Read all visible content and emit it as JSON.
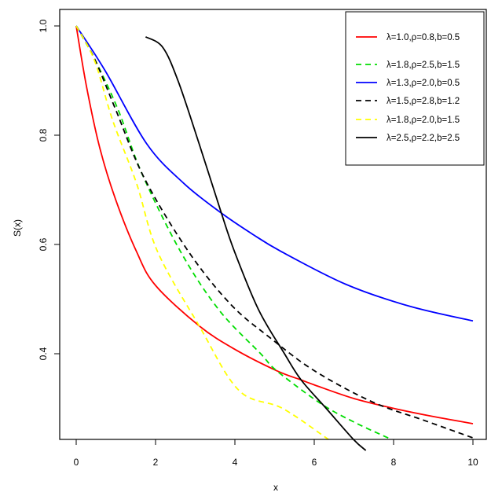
{
  "chart_data": {
    "type": "line",
    "title": "",
    "xlabel": "x",
    "ylabel": "S(x)",
    "xlim": [
      0,
      10
    ],
    "ylim": [
      0.243,
      1.03
    ],
    "xticks": [
      0,
      2,
      4,
      6,
      8,
      10
    ],
    "xtick_labels": [
      "0",
      "2",
      "4",
      "6",
      "8",
      "10"
    ],
    "yticks": [
      0.4,
      0.6,
      0.8,
      1.0
    ],
    "ytick_labels": [
      "0.4",
      "0.6",
      "0.8",
      "1.0"
    ],
    "grid": false,
    "legend_position": "top-right",
    "series": [
      {
        "name": "λ=1.0,ρ=0.8,b=0.5",
        "color": "#ff0000",
        "dash": "solid",
        "x": [
          0,
          0.26,
          0.59,
          0.99,
          1.52,
          2.0,
          3.1,
          4.0,
          5.05,
          5.67,
          6.0,
          7.0,
          8.0,
          9.0,
          10.0
        ],
        "y": [
          1.0,
          0.889,
          0.778,
          0.683,
          0.587,
          0.525,
          0.451,
          0.408,
          0.369,
          0.352,
          0.343,
          0.318,
          0.3,
          0.285,
          0.272
        ]
      },
      {
        "name": "λ=1.8,ρ=2.5,b=1.5",
        "color": "#00dd00",
        "dash": "dashed",
        "x": [
          0,
          0.46,
          1.06,
          1.65,
          2.63,
          3.6,
          4.65,
          5.05,
          6.16,
          7.0,
          7.95
        ],
        "y": [
          1.0,
          0.94,
          0.846,
          0.731,
          0.587,
          0.48,
          0.4,
          0.369,
          0.309,
          0.275,
          0.243
        ]
      },
      {
        "name": "λ=1.3,ρ=2.0,b=0.5",
        "color": "#0000ff",
        "dash": "solid",
        "x": [
          0,
          0.73,
          1.78,
          2.71,
          3.63,
          4.42,
          5.17,
          6.8,
          8.4,
          10.0
        ],
        "y": [
          1.0,
          0.918,
          0.784,
          0.712,
          0.659,
          0.62,
          0.587,
          0.527,
          0.487,
          0.46
        ]
      },
      {
        "name": "λ=1.5,ρ=2.8,b=1.2",
        "color": "#000000",
        "dash": "dashed",
        "x": [
          0,
          0.46,
          1.0,
          1.72,
          2.83,
          3.9,
          4.89,
          6.0,
          7.46,
          8.77,
          10.0
        ],
        "y": [
          1.0,
          0.94,
          0.846,
          0.721,
          0.587,
          0.49,
          0.429,
          0.369,
          0.312,
          0.278,
          0.246
        ]
      },
      {
        "name": "λ=1.8,ρ=2.0,b=1.5",
        "color": "#ffff00",
        "dash": "dashed",
        "x": [
          0,
          0.46,
          0.92,
          1.52,
          2.05,
          3.1,
          4.1,
          5.2,
          6.36
        ],
        "y": [
          1.0,
          0.937,
          0.827,
          0.712,
          0.587,
          0.451,
          0.333,
          0.3,
          0.243
        ]
      },
      {
        "name": "λ=2.5,ρ=2.2,b=2.5",
        "color": "#000000",
        "dash": "solid",
        "x": [
          1.75,
          2.18,
          2.57,
          3.1,
          3.63,
          3.99,
          4.6,
          5.25,
          5.67,
          6.3,
          6.99,
          7.3
        ],
        "y": [
          0.98,
          0.961,
          0.899,
          0.784,
          0.664,
          0.587,
          0.48,
          0.4,
          0.352,
          0.3,
          0.243,
          0.223
        ]
      }
    ]
  }
}
